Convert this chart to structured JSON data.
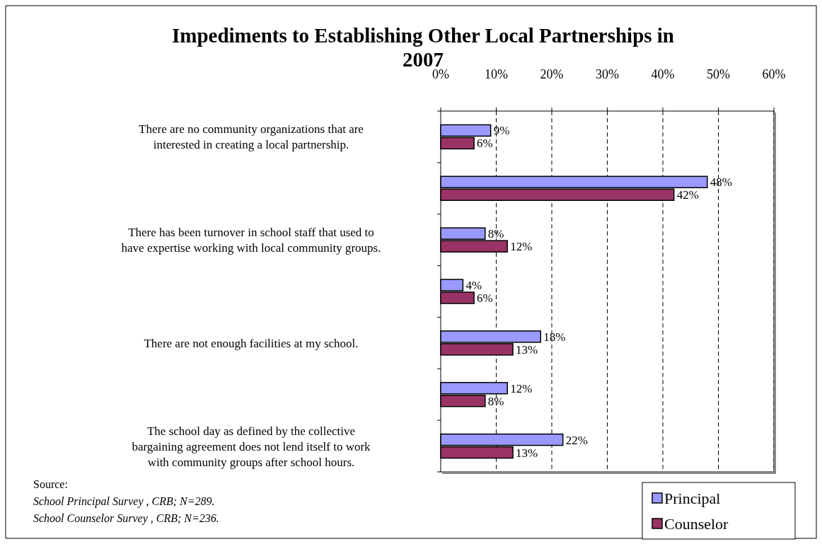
{
  "chart_data": {
    "type": "bar",
    "orientation": "horizontal",
    "title": "Impediments to Establishing Other Local  Partnerships in 2007",
    "categories": [
      "There are no community organizations that are interested in creating a local partnership.",
      null,
      "There has been turnover in school staff that used to have expertise working with local community groups.",
      null,
      "There are not enough facilities at my school.",
      null,
      "The school day as defined by the collective bargaining agreement does not lend itself to work with community groups after school hours."
    ],
    "series": [
      {
        "name": "Principal",
        "color": "#9999ff",
        "values": [
          9,
          48,
          8,
          4,
          18,
          12,
          22
        ],
        "value_labels": [
          "9%",
          "48%",
          "8%",
          "4%",
          "18%",
          "12%",
          "22%"
        ]
      },
      {
        "name": "Counselor",
        "color": "#993366",
        "values": [
          6,
          42,
          12,
          6,
          13,
          8,
          13
        ],
        "value_labels": [
          "6%",
          "42%",
          "12%",
          "6%",
          "13%",
          "8%",
          "13%"
        ]
      }
    ],
    "xlim": [
      0,
      60
    ],
    "xticks": [
      {
        "value": 0,
        "label": "0%"
      },
      {
        "value": 10,
        "label": "10%"
      },
      {
        "value": 20,
        "label": "20%"
      },
      {
        "value": 30,
        "label": "30%"
      },
      {
        "value": 40,
        "label": "40%"
      },
      {
        "value": 50,
        "label": "50%"
      },
      {
        "value": 60,
        "label": "60%"
      }
    ],
    "grid": "x",
    "legend": "bottom right",
    "annotations": [
      "Source:",
      "School Principal Survey , CRB; N=289.",
      "School Counselor Survey , CRB; N=236."
    ]
  }
}
